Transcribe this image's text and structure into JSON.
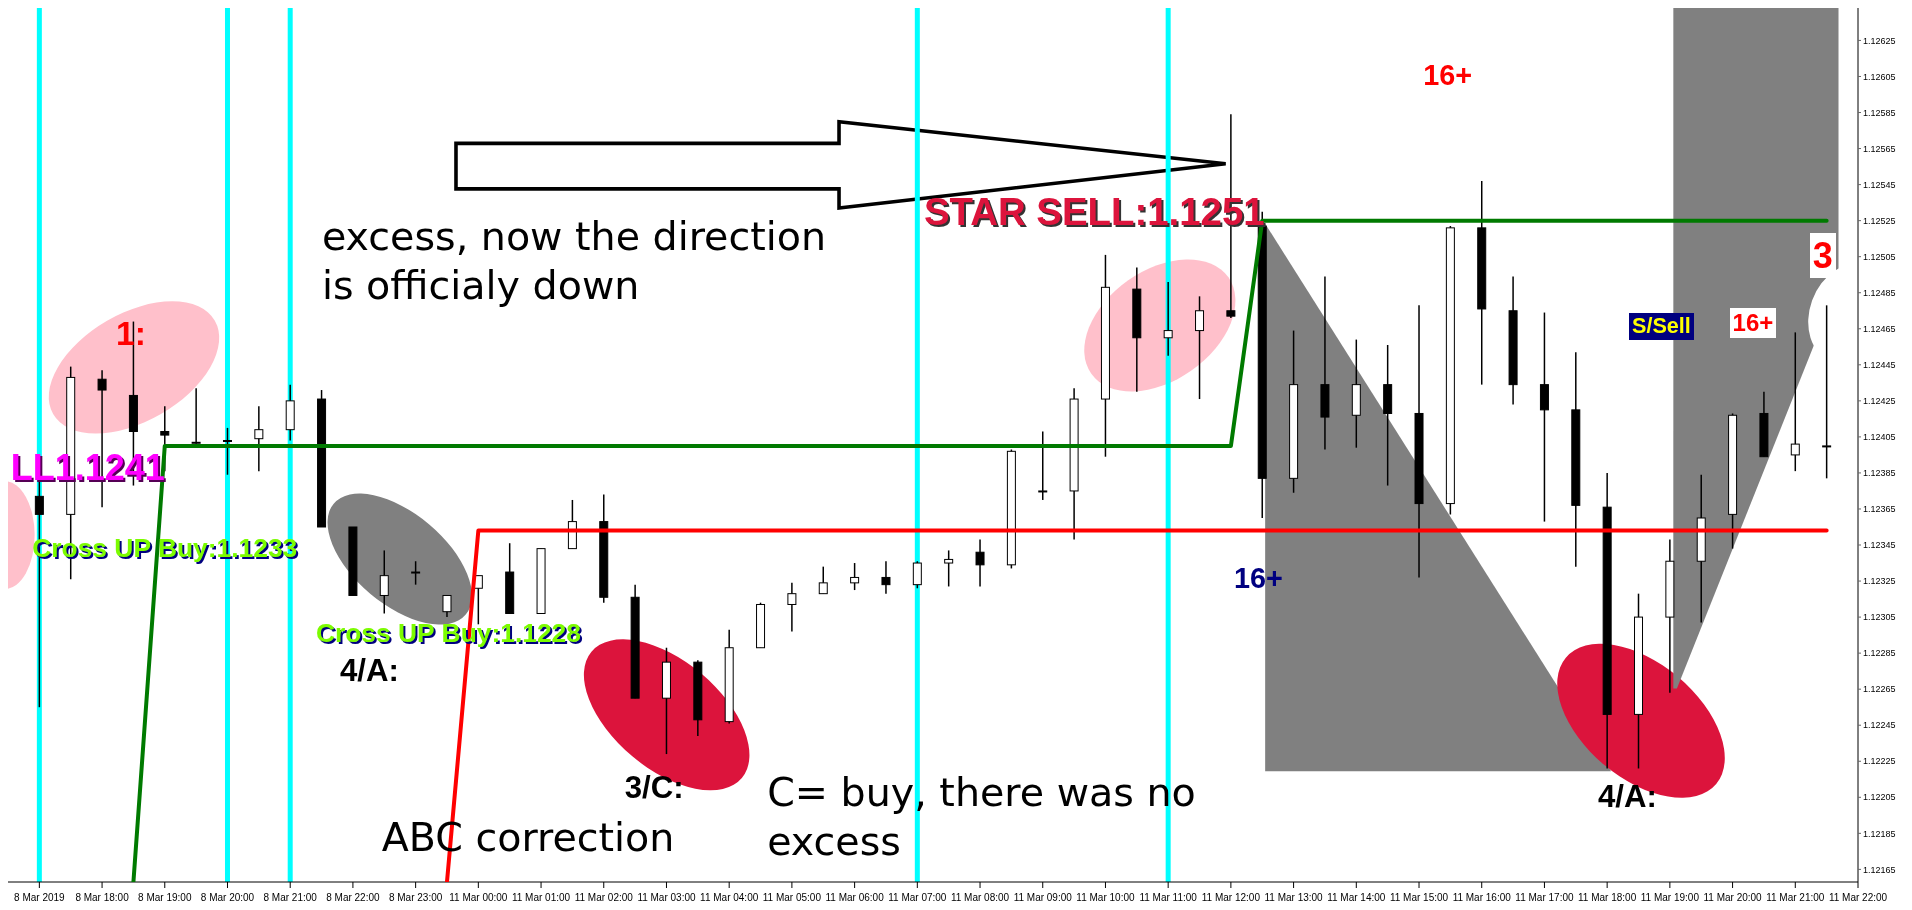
{
  "chart_data": {
    "type": "candlestick",
    "color": "#000000",
    "categories": [
      "8 Mar 2019",
      null,
      "8 Mar 18:00",
      null,
      "8 Mar 19:00",
      null,
      "8 Mar 20:00",
      null,
      "8 Mar 21:00",
      null,
      "8 Mar 22:00",
      null,
      "8 Mar 23:00",
      null,
      "11 Mar 00:00",
      null,
      "11 Mar 01:00",
      null,
      "11 Mar 02:00",
      null,
      "11 Mar 03:00",
      null,
      "11 Mar 04:00",
      null,
      "11 Mar 05:00",
      null,
      "11 Mar 06:00",
      null,
      "11 Mar 07:00",
      null,
      "11 Mar 08:00",
      null,
      "11 Mar 09:00",
      null,
      "11 Mar 10:00",
      null,
      "11 Mar 11:00",
      null,
      "11 Mar 12:00",
      null,
      "11 Mar 13:00",
      null,
      "11 Mar 14:00",
      null,
      "11 Mar 15:00",
      null,
      "11 Mar 16:00",
      null,
      "11 Mar 17:00",
      null,
      "11 Mar 18:00",
      null,
      "11 Mar 19:00",
      null,
      "11 Mar 20:00",
      null,
      "11 Mar 21:00",
      null,
      "11 Mar 22:00"
    ],
    "ohlc": [
      [
        1.12372,
        1.1238,
        1.12255,
        1.12362
      ],
      [
        1.12362,
        1.12444,
        1.12326,
        1.12438
      ],
      [
        1.12437,
        1.12442,
        1.12366,
        1.12431
      ],
      [
        1.12428,
        1.12469,
        1.12378,
        1.12408
      ],
      [
        1.12408,
        1.12422,
        1.12386,
        1.12406
      ],
      [
        1.12402,
        1.12432,
        1.124,
        1.12402
      ],
      [
        1.12403,
        1.1241,
        1.12384,
        1.12403
      ],
      [
        1.12404,
        1.12422,
        1.12386,
        1.12409
      ],
      [
        1.12409,
        1.12434,
        1.12403,
        1.12425
      ],
      [
        1.12426,
        1.12431,
        1.12355,
        1.12355
      ],
      [
        1.12355,
        1.12355,
        1.12317,
        1.12317
      ],
      [
        1.12317,
        1.12342,
        1.12307,
        1.12328
      ],
      [
        1.1233,
        1.12336,
        1.12323,
        1.1233
      ],
      [
        1.12308,
        1.12317,
        1.12305,
        1.12317
      ],
      [
        1.12321,
        1.12328,
        1.12301,
        1.12328
      ],
      [
        1.1233,
        1.12346,
        1.12307,
        1.12307
      ],
      [
        1.12307,
        1.12343,
        1.12307,
        1.12343
      ],
      [
        1.12343,
        1.1237,
        1.12343,
        1.12358
      ],
      [
        1.12358,
        1.12373,
        1.12313,
        1.12316
      ],
      [
        1.12316,
        1.12323,
        1.1226,
        1.1226
      ],
      [
        1.1226,
        1.12288,
        1.12229,
        1.1228
      ],
      [
        1.1228,
        1.12281,
        1.12239,
        1.12248
      ],
      [
        1.12247,
        1.12298,
        1.12246,
        1.12288
      ],
      [
        1.12288,
        1.12313,
        1.12288,
        1.12312
      ],
      [
        1.12312,
        1.12324,
        1.12297,
        1.12318
      ],
      [
        1.12318,
        1.12333,
        1.12318,
        1.12324
      ],
      [
        1.12324,
        1.12335,
        1.1232,
        1.12327
      ],
      [
        1.12327,
        1.12336,
        1.12318,
        1.12323
      ],
      [
        1.12323,
        1.12336,
        1.12321,
        1.12335
      ],
      [
        1.12335,
        1.12342,
        1.12322,
        1.12337
      ],
      [
        1.12341,
        1.12348,
        1.12322,
        1.12334
      ],
      [
        1.12334,
        1.12398,
        1.12332,
        1.12397
      ],
      [
        1.12375,
        1.12408,
        1.1237,
        1.12375
      ],
      [
        1.12375,
        1.12432,
        1.12348,
        1.12426
      ],
      [
        1.12426,
        1.12506,
        1.12394,
        1.12488
      ],
      [
        1.12487,
        1.12499,
        1.1243,
        1.1246
      ],
      [
        1.1246,
        1.12491,
        1.1245,
        1.12464
      ],
      [
        1.12464,
        1.12483,
        1.12426,
        1.12475
      ],
      [
        1.12475,
        1.12584,
        1.12471,
        1.12472
      ],
      [
        1.12522,
        1.1253,
        1.1236,
        1.12382
      ],
      [
        1.12382,
        1.12464,
        1.12374,
        1.12434
      ],
      [
        1.12434,
        1.12494,
        1.12398,
        1.12416
      ],
      [
        1.12417,
        1.12459,
        1.12399,
        1.12434
      ],
      [
        1.12434,
        1.12456,
        1.12378,
        1.12418
      ],
      [
        1.12418,
        1.12478,
        1.12327,
        1.12368
      ],
      [
        1.12368,
        1.12522,
        1.12362,
        1.12521
      ],
      [
        1.12521,
        1.12547,
        1.12434,
        1.12476
      ],
      [
        1.12475,
        1.12494,
        1.12423,
        1.12434
      ],
      [
        1.12434,
        1.12474,
        1.12358,
        1.1242
      ],
      [
        1.1242,
        1.12452,
        1.12333,
        1.12367
      ],
      [
        1.12366,
        1.12385,
        1.12221,
        1.12251
      ],
      [
        1.12251,
        1.12318,
        1.12221,
        1.12305
      ],
      [
        1.12305,
        1.12348,
        1.12263,
        1.12336
      ],
      [
        1.12336,
        1.12384,
        1.12302,
        1.1236
      ],
      [
        1.12362,
        1.12418,
        1.12343,
        1.12417
      ],
      [
        1.12418,
        1.1243,
        1.12394,
        1.12394
      ],
      [
        1.12395,
        1.12463,
        1.12386,
        1.12401
      ],
      [
        1.124,
        1.12478,
        1.12382,
        1.124
      ],
      null
    ],
    "series": [
      {
        "type": "line",
        "color": "#007a00",
        "values": [
          null,
          null,
          null,
          1.12158,
          1.124,
          1.124,
          1.124,
          1.124,
          1.124,
          1.124,
          1.124,
          1.124,
          1.124,
          1.124,
          1.124,
          1.124,
          1.124,
          1.124,
          1.124,
          1.124,
          1.124,
          1.124,
          1.124,
          1.124,
          1.124,
          1.124,
          1.124,
          1.124,
          1.124,
          1.124,
          1.124,
          1.124,
          1.124,
          1.124,
          1.124,
          1.124,
          1.124,
          1.124,
          1.124,
          1.12525,
          1.12525,
          1.12525,
          1.12525,
          1.12525,
          1.12525,
          1.12525,
          1.12525,
          1.12525,
          1.12525,
          1.12525,
          1.12525,
          1.12525,
          1.12525,
          1.12525,
          1.12525,
          1.12525,
          1.12525,
          1.12525,
          null
        ]
      },
      {
        "type": "line",
        "color": "#ff0000",
        "values": [
          null,
          null,
          null,
          null,
          null,
          null,
          null,
          null,
          null,
          null,
          null,
          null,
          null,
          1.12158,
          1.12353,
          1.12353,
          1.12353,
          1.12353,
          1.12353,
          1.12353,
          1.12353,
          1.12353,
          1.12353,
          1.12353,
          1.12353,
          1.12353,
          1.12353,
          1.12353,
          1.12353,
          1.12353,
          1.12353,
          1.12353,
          1.12353,
          1.12353,
          1.12353,
          1.12353,
          1.12353,
          1.12353,
          1.12353,
          1.12353,
          1.12353,
          1.12353,
          1.12353,
          1.12353,
          1.12353,
          1.12353,
          1.12353,
          1.12353,
          1.12353,
          1.12353,
          1.12353,
          1.12353,
          1.12353,
          1.12353,
          1.12353,
          1.12353,
          1.12353,
          1.12353,
          null
        ]
      }
    ],
    "ylim": [
      1.12158,
      1.12643
    ],
    "yticks": [
      1.12165,
      1.12185,
      1.12205,
      1.12225,
      1.12245,
      1.12265,
      1.12285,
      1.12305,
      1.12325,
      1.12345,
      1.12365,
      1.12385,
      1.12405,
      1.12425,
      1.12445,
      1.12465,
      1.12485,
      1.12505,
      1.12525,
      1.12545,
      1.12565,
      1.12585,
      1.12605,
      1.12625
    ],
    "ref_lines": [
      {
        "axis": "x",
        "value": "8 Mar 2019",
        "color": "#00ffff"
      },
      {
        "axis": "x",
        "value": "8 Mar 20:00",
        "color": "#00ffff"
      },
      {
        "axis": "x",
        "value": "8 Mar 21:00",
        "color": "#00ffff"
      },
      {
        "axis": "x",
        "value": "11 Mar 07:00",
        "color": "#00ffff"
      },
      {
        "axis": "x",
        "value": "11 Mar 11:00",
        "color": "#00ffff"
      }
    ],
    "annotations": [
      "16+",
      "STAR SELL:1.1251",
      "excess, now the direction is officialy down",
      "1:",
      "LL1.1241",
      "Cross UP Buy:1.1233",
      "Cross UP Buy:1.1228",
      "4/A:",
      "3/C:",
      "ABC correction",
      "C= buy, there was no excess",
      "16+",
      "4/A:",
      "S/Sell",
      "16+",
      "3"
    ]
  }
}
